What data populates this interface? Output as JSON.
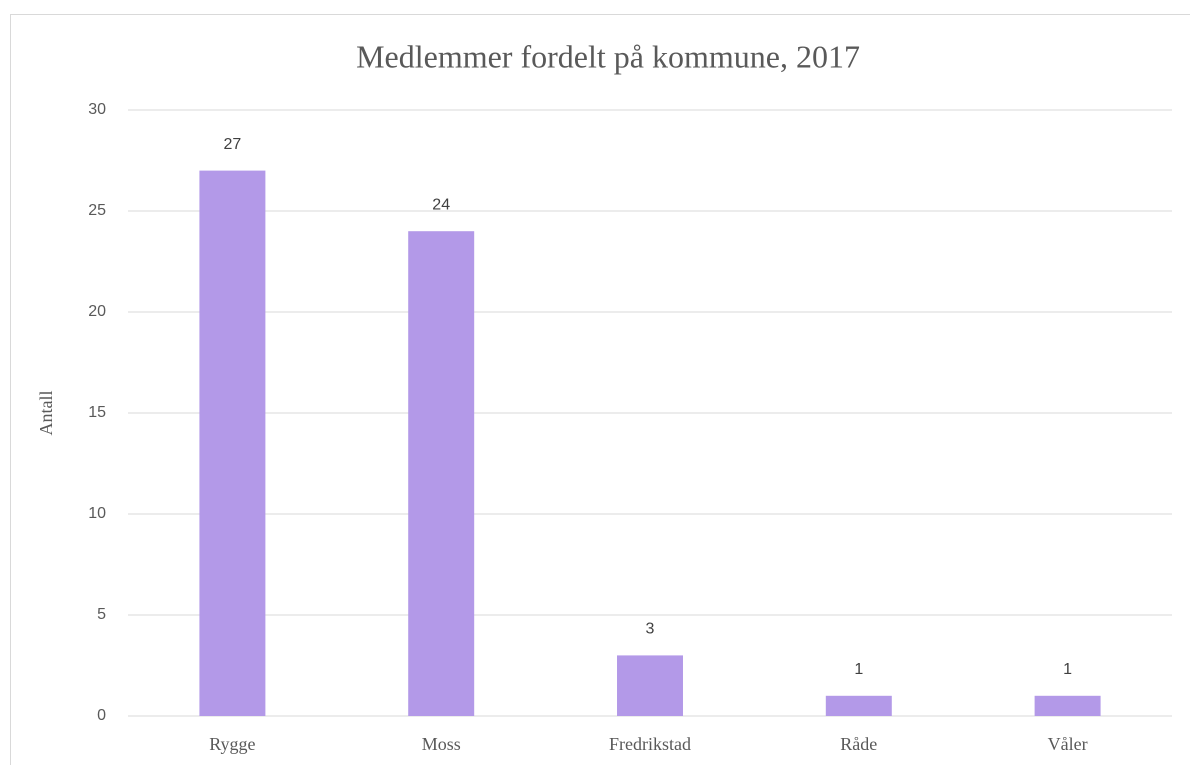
{
  "chart_data": {
    "type": "bar",
    "title": "Medlemmer fordelt på kommune, 2017",
    "y_label": "Antall",
    "categories": [
      "Rygge",
      "Moss",
      "Fredrikstad",
      "Råde",
      "Våler"
    ],
    "values": [
      27,
      24,
      3,
      1,
      1
    ],
    "color": "#b399e8",
    "ylim": [
      0,
      30
    ],
    "yticks": [
      0,
      5,
      10,
      15,
      20,
      25,
      30
    ],
    "grid": true,
    "data_labels": true
  }
}
